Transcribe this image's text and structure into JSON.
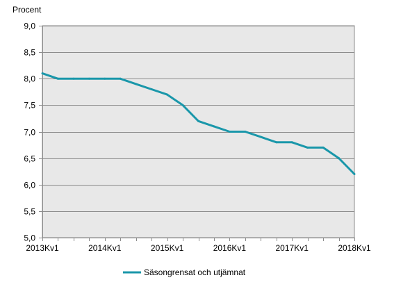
{
  "chart_data": {
    "type": "line",
    "title": "",
    "ylabel": "Procent",
    "xlabel": "",
    "ylim": [
      5.0,
      9.0
    ],
    "y_ticks": [
      "5,0",
      "5,5",
      "6,0",
      "6,5",
      "7,0",
      "7,5",
      "8,0",
      "8,5",
      "9,0"
    ],
    "y_tick_values": [
      5.0,
      5.5,
      6.0,
      6.5,
      7.0,
      7.5,
      8.0,
      8.5,
      9.0
    ],
    "x_tick_labels": [
      "2013Kv1",
      "2014Kv1",
      "2015Kv1",
      "2016Kv1",
      "2017Kv1",
      "2018Kv1"
    ],
    "categories": [
      "2013Kv1",
      "2013Kv2",
      "2013Kv3",
      "2013Kv4",
      "2014Kv1",
      "2014Kv2",
      "2014Kv3",
      "2014Kv4",
      "2015Kv1",
      "2015Kv2",
      "2015Kv3",
      "2015Kv4",
      "2016Kv1",
      "2016Kv2",
      "2016Kv3",
      "2016Kv4",
      "2017Kv1",
      "2017Kv2",
      "2017Kv3",
      "2017Kv4",
      "2018Kv1"
    ],
    "series": [
      {
        "name": "Säsongrensat och utjämnat",
        "color": "#1a97aa",
        "values": [
          8.1,
          8.0,
          8.0,
          8.0,
          8.0,
          8.0,
          7.9,
          7.8,
          7.7,
          7.5,
          7.2,
          7.1,
          7.0,
          7.0,
          6.9,
          6.8,
          6.8,
          6.7,
          6.7,
          6.5,
          6.2
        ]
      }
    ],
    "grid": true,
    "legend_position": "bottom",
    "plot_background": "#e8e8e8",
    "gridline_color": "#8c8c8c"
  }
}
